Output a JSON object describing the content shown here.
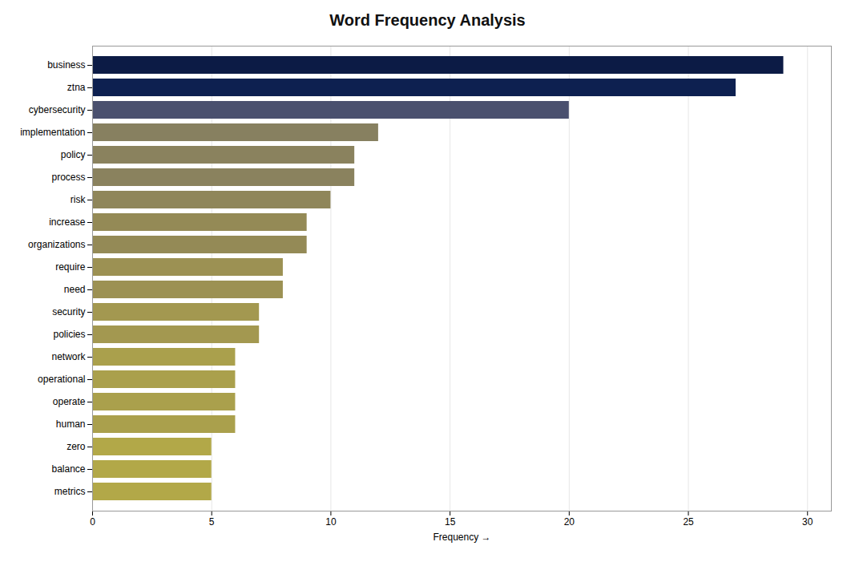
{
  "chart_data": {
    "type": "bar",
    "orientation": "horizontal",
    "title": "Word Frequency Analysis",
    "categories": [
      "business",
      "ztna",
      "cybersecurity",
      "implementation",
      "policy",
      "process",
      "risk",
      "increase",
      "organizations",
      "require",
      "need",
      "security",
      "policies",
      "network",
      "operational",
      "operate",
      "human",
      "zero",
      "balance",
      "metrics"
    ],
    "values": [
      29,
      27,
      20,
      12,
      11,
      11,
      10,
      9,
      9,
      8,
      8,
      7,
      7,
      6,
      6,
      6,
      6,
      5,
      5,
      5
    ],
    "colors": [
      "#0c1b45",
      "#0d2050",
      "#4a506e",
      "#878060",
      "#8a825e",
      "#8a825e",
      "#8f865a",
      "#948a56",
      "#948a56",
      "#9c9153",
      "#9c9153",
      "#a39850",
      "#a39850",
      "#aaa04c",
      "#aaa04c",
      "#aaa04c",
      "#aaa04c",
      "#b2a848",
      "#b2a848",
      "#b2a848"
    ],
    "xlabel": "Frequency",
    "xlim": [
      0,
      31
    ],
    "xticks": [
      0,
      5,
      10,
      15,
      20,
      25,
      30
    ],
    "grid": true
  }
}
